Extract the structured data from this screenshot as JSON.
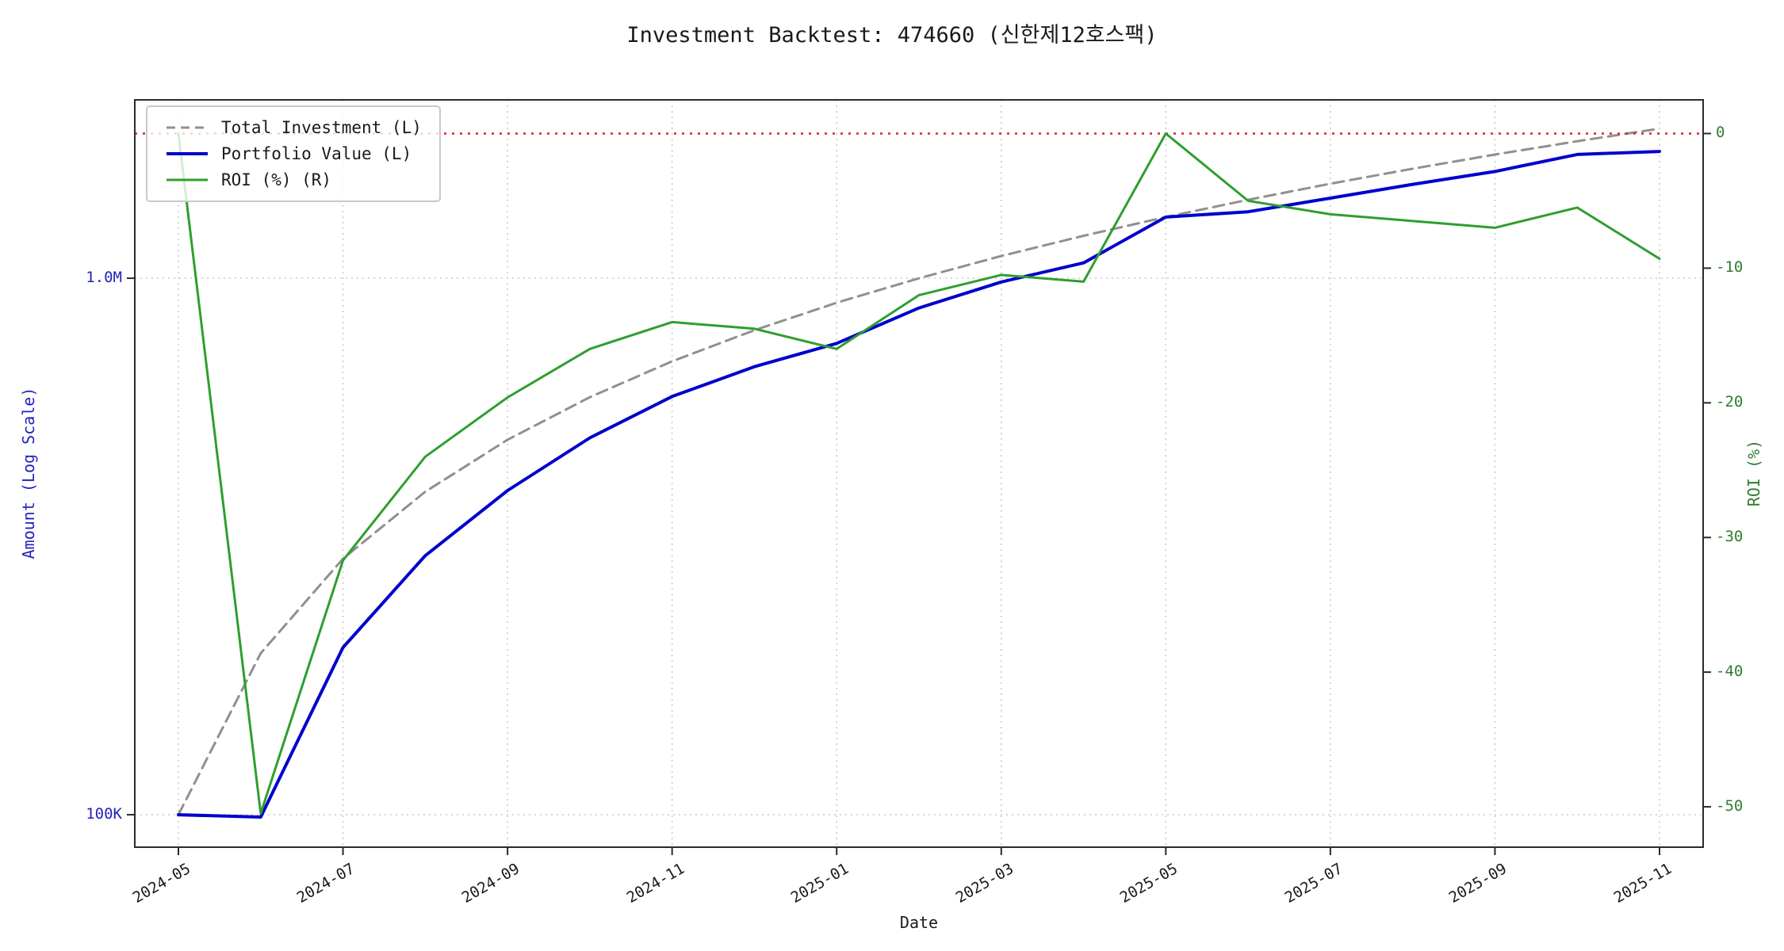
{
  "title": "Investment Backtest: 474660 (신한제12호스팩)",
  "axes": {
    "x_label": "Date",
    "y_left_label": "Amount (Log Scale)",
    "y_right_label": "ROI (%)",
    "x_ticks": [
      "2024-05",
      "2024-07",
      "2024-09",
      "2024-11",
      "2025-01",
      "2025-03",
      "2025-05",
      "2025-07",
      "2025-09",
      "2025-11"
    ],
    "y_left_ticks": [
      {
        "value": 100000,
        "label": "100K"
      },
      {
        "value": 1000000,
        "label": "1.0M"
      }
    ],
    "y_right_ticks": [
      {
        "value": 0,
        "label": "0"
      },
      {
        "value": -10,
        "label": "-10"
      },
      {
        "value": -20,
        "label": "-20"
      },
      {
        "value": -30,
        "label": "-30"
      },
      {
        "value": -40,
        "label": "-40"
      },
      {
        "value": -50,
        "label": "-50"
      }
    ]
  },
  "legend": [
    {
      "label": "Total Investment (L)",
      "color": "#909090",
      "dash": "11 7"
    },
    {
      "label": "Portfolio Value (L)",
      "color": "#0000cc",
      "dash": ""
    },
    {
      "label": "ROI (%) (R)",
      "color": "#2f9e2f",
      "dash": ""
    }
  ],
  "colors": {
    "grid": "#c9c9c9",
    "spine": "#2b2b2b",
    "zero_line": "#d62728",
    "left_axis_text": "#2323bb",
    "right_axis_text": "#2f7d2f",
    "text": "#1a1a1a"
  },
  "chart_data": {
    "type": "line",
    "x": [
      "2024-05",
      "2024-06",
      "2024-07",
      "2024-08",
      "2024-09",
      "2024-10",
      "2024-11",
      "2024-12",
      "2025-01",
      "2025-02",
      "2025-03",
      "2025-04",
      "2025-05",
      "2025-06",
      "2025-07",
      "2025-08",
      "2025-09",
      "2025-10",
      "2025-11"
    ],
    "series": [
      {
        "name": "Total Investment (L)",
        "key": "total-investment",
        "axis": "left",
        "color": "#909090",
        "dash": "14 8",
        "width": 3,
        "values": [
          100000,
          200000,
          300000,
          400000,
          500000,
          600000,
          700000,
          800000,
          900000,
          1000000,
          1100000,
          1200000,
          1300000,
          1400000,
          1500000,
          1600000,
          1700000,
          1800000,
          1900000
        ]
      },
      {
        "name": "Portfolio Value (L)",
        "key": "portfolio-value",
        "axis": "left",
        "color": "#0000cc",
        "dash": "",
        "width": 4,
        "values": [
          100000,
          99000,
          205000,
          304000,
          402000,
          504000,
          602000,
          684000,
          756000,
          880000,
          984000,
          1068000,
          1300000,
          1330000,
          1410000,
          1496000,
          1581000,
          1701000,
          1723000
        ]
      },
      {
        "name": "ROI (%) (R)",
        "key": "roi",
        "axis": "right",
        "color": "#2f9e2f",
        "dash": "",
        "width": 3,
        "values": [
          0,
          -50.5,
          -31.7,
          -24,
          -19.6,
          -16,
          -14,
          -14.5,
          -16,
          -12,
          -10.5,
          -11,
          0,
          -5,
          -6,
          -6.5,
          -7,
          -5.5,
          -9.3
        ]
      }
    ],
    "y_left": {
      "scale": "log",
      "lim": [
        87000,
        2150000
      ]
    },
    "y_right": {
      "lim": [
        -53,
        2.5
      ]
    },
    "zero_line": {
      "axis": "right",
      "value": 0,
      "color": "#d62728",
      "dash": "3 7"
    },
    "grid": true,
    "legend_position": "upper-left"
  }
}
